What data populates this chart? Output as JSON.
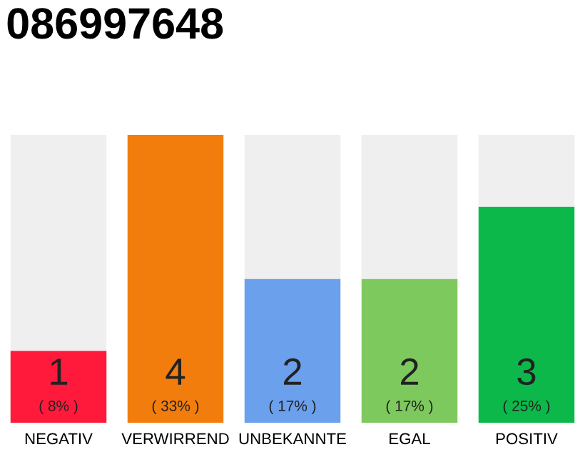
{
  "chart_data": {
    "type": "bar",
    "title": "086997648",
    "stacked": true,
    "legend": false,
    "categories": [
      "NEGATIV",
      "VERWIRREND",
      "UNBEKANNTE",
      "EGAL",
      "POSITIV"
    ],
    "series": [
      {
        "colors": [
          "#ff1a3c",
          "#f27d0c",
          "#6aa0ec",
          "#7ec95d",
          "#0cb84a"
        ],
        "values": [
          1,
          4,
          2,
          2,
          3
        ],
        "value_labels": [
          "1\n( 8% )",
          "4\n( 33% )",
          "2\n( 17% )",
          "2\n( 17% )",
          "3\n( 25% )"
        ]
      },
      {
        "color": "#efefef",
        "values": [
          3,
          0,
          2,
          2,
          1
        ]
      }
    ]
  }
}
